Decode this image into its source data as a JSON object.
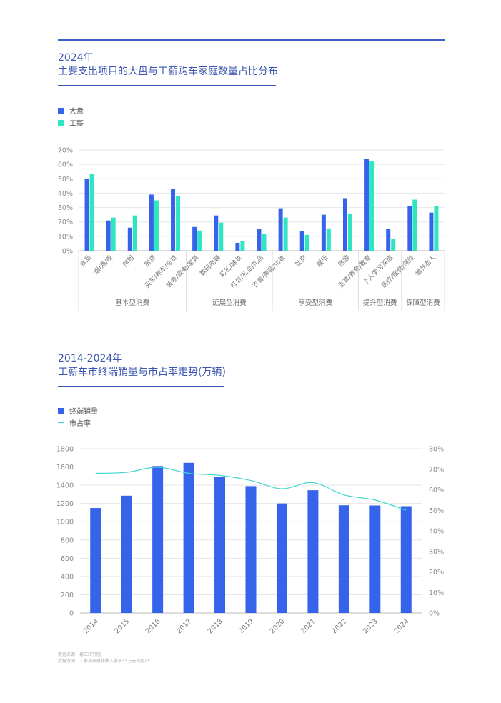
{
  "colors": {
    "primary": "#3564eb",
    "secondary": "#2ee6c2",
    "line": "#3fd6d0",
    "rule": "#3a56b0"
  },
  "chart1": {
    "year": "2024年",
    "title": "主要支出项目的大盘与工薪购车家庭数量占比分布",
    "legend": [
      "大盘",
      "工薪"
    ]
  },
  "chart2": {
    "year": "2014-2024年",
    "title": "工薪车市终端销量与市占率走势(万辆)",
    "legend": [
      "终端销量",
      "市占率"
    ]
  },
  "footnote": [
    "数据来源：易车研究院",
    "数据说明：工薪指家庭年收入低于15万元的用户"
  ],
  "chart_data": [
    {
      "type": "bar",
      "title": "主要支出项目的大盘与工薪购车家庭数量占比分布",
      "categories": [
        "食品",
        "烟/酒/茶",
        "房租",
        "房贷",
        "买车/养车/车贷",
        "装修/家电/家具",
        "数码电器",
        "彩礼/嫁妆",
        "红包/礼金/礼品",
        "衣着/美容/化妆",
        "社交",
        "娱乐",
        "旅游",
        "生育/养育/教育",
        "个人学习深造",
        "医疗/保健/保险",
        "赡养老人"
      ],
      "series": [
        {
          "name": "大盘",
          "values": [
            50,
            21,
            16,
            39,
            43,
            16.5,
            24.5,
            5.5,
            15,
            29.5,
            13.5,
            25,
            36.5,
            64,
            15,
            31,
            26.5
          ]
        },
        {
          "name": "工薪",
          "values": [
            53.5,
            23,
            24.5,
            35,
            38,
            14,
            19.5,
            6.5,
            11.5,
            23,
            11,
            15.5,
            25.5,
            62,
            8.5,
            35.5,
            31
          ]
        }
      ],
      "groups": [
        {
          "label": "基本型消费",
          "count": 5
        },
        {
          "label": "延展型消费",
          "count": 4
        },
        {
          "label": "享受型消费",
          "count": 4
        },
        {
          "label": "提升型消费",
          "count": 2
        },
        {
          "label": "保障型消费",
          "count": 2
        }
      ],
      "yticks": [
        "0%",
        "10%",
        "20%",
        "30%",
        "40%",
        "50%",
        "60%",
        "70%"
      ],
      "ylim": [
        0,
        70
      ],
      "legend_position": "top-left",
      "grid": true
    },
    {
      "type": "bar+line",
      "title": "工薪车市终端销量与市占率走势(万辆)",
      "categories": [
        "2014",
        "2015",
        "2016",
        "2017",
        "2018",
        "2019",
        "2020",
        "2021",
        "2022",
        "2023",
        "2024"
      ],
      "series": [
        {
          "name": "终端销量",
          "type": "bar",
          "axis": "left",
          "values": [
            1150,
            1285,
            1610,
            1645,
            1495,
            1390,
            1200,
            1345,
            1180,
            1178,
            1170
          ]
        },
        {
          "name": "市占率",
          "type": "line",
          "axis": "right",
          "values": [
            68,
            68.5,
            71,
            68,
            67,
            64.5,
            60.5,
            63.5,
            57.5,
            55,
            50
          ]
        }
      ],
      "yticks_left": [
        "0",
        "200",
        "400",
        "600",
        "800",
        "1000",
        "1200",
        "1400",
        "1600",
        "1800"
      ],
      "yticks_right": [
        "0%",
        "10%",
        "20%",
        "30%",
        "40%",
        "50%",
        "60%",
        "70%",
        "80%"
      ],
      "ylim_left": [
        0,
        1800
      ],
      "ylim_right": [
        0,
        80
      ],
      "legend_position": "top-left",
      "grid": true
    }
  ]
}
